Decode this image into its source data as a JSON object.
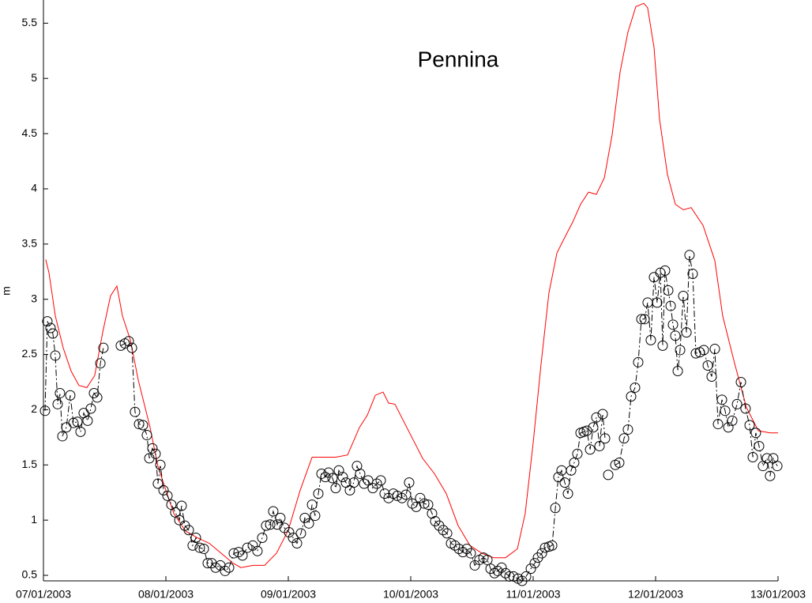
{
  "chart_data": {
    "type": "line",
    "title": "Pennina",
    "ylabel": "m",
    "xlim": [
      0,
      6
    ],
    "xticks": [
      {
        "value": 0,
        "label": "07/01/2003"
      },
      {
        "value": 1,
        "label": "08/01/2003"
      },
      {
        "value": 2,
        "label": "09/01/2003"
      },
      {
        "value": 3,
        "label": "10/01/2003"
      },
      {
        "value": 4,
        "label": "11/01/2003"
      },
      {
        "value": 5,
        "label": "12/01/2003"
      },
      {
        "value": 6,
        "label": "13/01/2003"
      }
    ],
    "ylim": [
      0.45,
      5.71
    ],
    "yticks": [
      0.5,
      1,
      1.5,
      2,
      2.5,
      3,
      3.5,
      4,
      4.5,
      5,
      5.5
    ],
    "series": [
      {
        "color": "#ff0000",
        "linestyle": "solid",
        "marker": "none",
        "x": [
          0.019,
          0.045,
          0.097,
          0.161,
          0.226,
          0.29,
          0.355,
          0.419,
          0.484,
          0.548,
          0.6,
          0.645,
          0.71,
          0.774,
          0.871,
          0.935,
          1.0,
          1.065,
          1.161,
          1.258,
          1.355,
          1.452,
          1.548,
          1.613,
          1.71,
          1.806,
          1.903,
          2.0,
          2.097,
          2.194,
          2.29,
          2.387,
          2.484,
          2.581,
          2.645,
          2.71,
          2.774,
          2.819,
          2.871,
          2.968,
          3.032,
          3.097,
          3.194,
          3.29,
          3.387,
          3.484,
          3.581,
          3.677,
          3.774,
          3.871,
          3.935,
          4.0,
          4.065,
          4.129,
          4.194,
          4.258,
          4.323,
          4.387,
          4.452,
          4.516,
          4.581,
          4.645,
          4.71,
          4.774,
          4.839,
          4.903,
          4.935,
          4.987,
          5.032,
          5.097,
          5.161,
          5.226,
          5.29,
          5.387,
          5.484,
          5.548,
          5.645,
          5.742,
          5.839,
          5.935,
          6.0
        ],
        "values": [
          3.36,
          3.24,
          2.85,
          2.56,
          2.35,
          2.22,
          2.2,
          2.31,
          2.7,
          3.03,
          3.12,
          2.85,
          2.63,
          2.27,
          1.84,
          1.49,
          1.27,
          1.06,
          0.9,
          0.84,
          0.79,
          0.7,
          0.61,
          0.57,
          0.59,
          0.59,
          0.7,
          0.91,
          1.27,
          1.57,
          1.57,
          1.57,
          1.59,
          1.84,
          1.95,
          2.13,
          2.16,
          2.06,
          2.05,
          1.84,
          1.7,
          1.56,
          1.42,
          1.24,
          0.95,
          0.77,
          0.7,
          0.66,
          0.66,
          0.74,
          1.06,
          1.7,
          2.42,
          3.06,
          3.42,
          3.56,
          3.7,
          3.86,
          3.97,
          3.95,
          4.1,
          4.49,
          5.06,
          5.42,
          5.65,
          5.68,
          5.64,
          5.28,
          4.63,
          4.13,
          3.86,
          3.81,
          3.83,
          3.67,
          3.35,
          2.85,
          2.42,
          2.02,
          1.81,
          1.79,
          1.79
        ]
      },
      {
        "color": "#000000",
        "linestyle": "dashdot",
        "marker": "circle",
        "x": [
          0.013,
          0.032,
          0.058,
          0.077,
          0.097,
          0.116,
          0.135,
          0.155,
          0.187,
          0.219,
          0.245,
          0.277,
          0.303,
          0.329,
          0.361,
          0.387,
          0.413,
          0.439,
          0.465,
          0.49,
          0.6,
          0.632,
          0.665,
          0.697,
          0.723,
          0.748,
          0.781,
          0.813,
          0.845,
          0.865,
          0.89,
          0.916,
          0.935,
          0.955,
          0.981,
          1.013,
          1.045,
          1.077,
          1.11,
          1.129,
          1.155,
          1.187,
          1.219,
          1.245,
          1.277,
          1.31,
          1.342,
          1.374,
          1.406,
          1.445,
          1.484,
          1.516,
          1.555,
          1.594,
          1.626,
          1.665,
          1.71,
          1.748,
          1.787,
          1.819,
          1.852,
          1.877,
          1.91,
          1.935,
          1.968,
          2.006,
          2.039,
          2.071,
          2.103,
          2.135,
          2.168,
          2.194,
          2.219,
          2.245,
          2.271,
          2.303,
          2.329,
          2.361,
          2.387,
          2.413,
          2.445,
          2.471,
          2.503,
          2.535,
          2.561,
          2.587,
          2.619,
          2.652,
          2.69,
          2.723,
          2.755,
          2.787,
          2.819,
          2.858,
          2.89,
          2.929,
          2.961,
          2.987,
          3.013,
          3.045,
          3.077,
          3.11,
          3.142,
          3.174,
          3.2,
          3.232,
          3.265,
          3.297,
          3.329,
          3.361,
          3.394,
          3.426,
          3.458,
          3.49,
          3.523,
          3.561,
          3.594,
          3.626,
          3.652,
          3.684,
          3.71,
          3.742,
          3.774,
          3.806,
          3.839,
          3.877,
          3.91,
          3.942,
          3.981,
          4.013,
          4.039,
          4.071,
          4.097,
          4.129,
          4.155,
          4.181,
          4.206,
          4.232,
          4.258,
          4.284,
          4.31,
          4.335,
          4.361,
          4.387,
          4.413,
          4.439,
          4.465,
          4.49,
          4.516,
          4.542,
          4.568,
          4.587,
          4.6,
          4.613,
          4.65,
          4.671,
          4.703,
          4.742,
          4.774,
          4.8,
          4.832,
          4.858,
          4.884,
          4.91,
          4.935,
          4.961,
          4.987,
          5.013,
          5.039,
          5.058,
          5.077,
          5.103,
          5.123,
          5.142,
          5.161,
          5.181,
          5.2,
          5.226,
          5.252,
          5.277,
          5.303,
          5.329,
          5.361,
          5.394,
          5.426,
          5.458,
          5.484,
          5.51,
          5.542,
          5.568,
          5.594,
          5.626,
          5.665,
          5.697,
          5.735,
          5.768,
          5.794,
          5.819,
          5.845,
          5.877,
          5.91,
          5.935,
          5.961,
          5.994
        ],
        "values": [
          1.99,
          2.8,
          2.74,
          2.69,
          2.49,
          2.05,
          2.15,
          1.76,
          1.84,
          2.13,
          1.88,
          1.89,
          1.8,
          1.97,
          1.9,
          2.01,
          2.15,
          2.11,
          2.42,
          2.56,
          null,
          2.58,
          2.6,
          2.62,
          2.56,
          1.98,
          1.87,
          1.86,
          1.77,
          1.56,
          1.65,
          1.6,
          1.33,
          1.5,
          1.27,
          1.22,
          1.14,
          1.07,
          1.0,
          1.13,
          0.95,
          0.91,
          0.77,
          0.84,
          0.75,
          0.74,
          0.61,
          0.61,
          0.57,
          0.59,
          0.54,
          0.57,
          0.7,
          0.71,
          0.68,
          0.75,
          0.77,
          0.72,
          0.84,
          0.95,
          0.96,
          1.08,
          0.96,
          1.02,
          0.93,
          0.89,
          0.84,
          0.79,
          0.88,
          1.02,
          0.97,
          1.14,
          1.04,
          1.24,
          1.42,
          1.39,
          1.43,
          1.38,
          1.29,
          1.45,
          1.39,
          1.34,
          1.27,
          1.34,
          1.49,
          1.42,
          1.33,
          1.36,
          1.29,
          1.33,
          1.36,
          1.24,
          1.2,
          1.24,
          1.22,
          1.2,
          1.23,
          1.34,
          1.15,
          1.12,
          1.2,
          1.15,
          1.14,
          1.06,
          0.99,
          0.95,
          0.91,
          0.88,
          0.79,
          0.77,
          0.74,
          0.71,
          0.74,
          0.7,
          0.59,
          0.64,
          0.66,
          0.64,
          0.56,
          0.52,
          0.54,
          0.57,
          0.52,
          0.49,
          0.49,
          0.47,
          0.45,
          0.49,
          0.56,
          0.61,
          0.66,
          0.7,
          0.75,
          0.76,
          0.77,
          1.11,
          1.39,
          1.45,
          1.34,
          1.24,
          1.45,
          1.52,
          1.6,
          1.79,
          1.8,
          1.81,
          1.64,
          1.84,
          1.93,
          1.67,
          1.96,
          1.74,
          null,
          1.41,
          null,
          1.5,
          1.52,
          1.74,
          1.82,
          2.12,
          2.2,
          2.43,
          2.82,
          2.82,
          2.97,
          2.63,
          3.2,
          2.97,
          3.24,
          2.58,
          3.26,
          3.08,
          2.94,
          2.77,
          2.67,
          2.35,
          2.54,
          3.03,
          2.7,
          3.4,
          3.23,
          2.51,
          2.52,
          2.54,
          2.4,
          2.3,
          2.55,
          1.87,
          2.09,
          1.99,
          1.84,
          1.9,
          2.05,
          2.25,
          2.01,
          1.86,
          1.57,
          1.79,
          1.67,
          1.49,
          1.56,
          1.4,
          1.56,
          1.49
        ]
      }
    ]
  }
}
